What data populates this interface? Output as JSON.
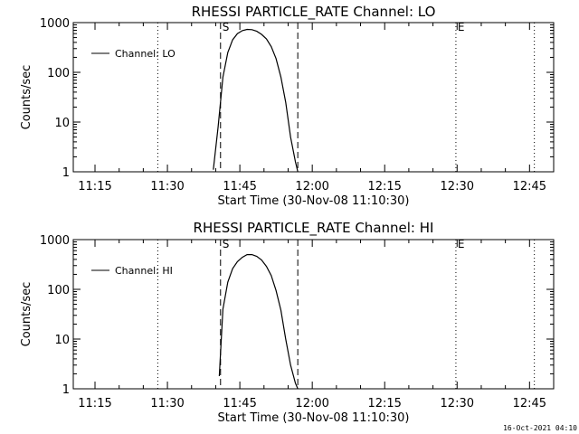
{
  "chart_data": [
    {
      "type": "line",
      "title": "RHESSI PARTICLE_RATE Channel: LO",
      "xlabel": "Start Time (30-Nov-08 11:10:30)",
      "ylabel": "Counts/sec",
      "y_scale": "log",
      "ylim": [
        1,
        1000
      ],
      "xlim": [
        "11:10:30",
        "12:50:00"
      ],
      "x_ticks": [
        "11:15",
        "11:30",
        "11:45",
        "12:00",
        "12:15",
        "12:30",
        "12:45"
      ],
      "y_ticks": [
        "1",
        "10",
        "100",
        "1000"
      ],
      "legend": "top-left",
      "markers": [
        {
          "label": "S",
          "time": "11:41:00",
          "style": "dashed"
        },
        {
          "label": "",
          "time": "11:57:00",
          "style": "dashed"
        },
        {
          "label": "",
          "time": "11:28:00",
          "style": "dotted"
        },
        {
          "label": "E",
          "time": "12:29:45",
          "style": "dotted"
        },
        {
          "label": "",
          "time": "12:46:00",
          "style": "dotted"
        }
      ],
      "series": [
        {
          "name": "Channel: LO",
          "x": [
            "11:39:30",
            "11:40:30",
            "11:41:30",
            "11:42:30",
            "11:43:30",
            "11:44:30",
            "11:45:30",
            "11:46:30",
            "11:47:30",
            "11:48:30",
            "11:49:30",
            "11:50:30",
            "11:51:30",
            "11:52:30",
            "11:53:30",
            "11:54:30",
            "11:55:30",
            "11:56:30",
            "11:57:00"
          ],
          "y": [
            1.1,
            8,
            80,
            250,
            450,
            600,
            690,
            730,
            720,
            670,
            580,
            470,
            330,
            190,
            80,
            25,
            5,
            1.6,
            1
          ]
        }
      ]
    },
    {
      "type": "line",
      "title": "RHESSI PARTICLE_RATE Channel: HI",
      "xlabel": "Start Time (30-Nov-08 11:10:30)",
      "ylabel": "Counts/sec",
      "y_scale": "log",
      "ylim": [
        1,
        1000
      ],
      "xlim": [
        "11:10:30",
        "12:50:00"
      ],
      "x_ticks": [
        "11:15",
        "11:30",
        "11:45",
        "12:00",
        "12:15",
        "12:30",
        "12:45"
      ],
      "y_ticks": [
        "1",
        "10",
        "100",
        "1000"
      ],
      "legend": "top-left",
      "markers": [
        {
          "label": "S",
          "time": "11:41:00",
          "style": "dashed"
        },
        {
          "label": "",
          "time": "11:57:00",
          "style": "dashed"
        },
        {
          "label": "",
          "time": "11:28:00",
          "style": "dotted"
        },
        {
          "label": "E",
          "time": "12:29:45",
          "style": "dotted"
        },
        {
          "label": "",
          "time": "12:46:00",
          "style": "dotted"
        }
      ],
      "series": [
        {
          "name": "Channel: HI",
          "x": [
            "11:40:45",
            "11:41:30",
            "11:42:30",
            "11:43:30",
            "11:44:30",
            "11:45:30",
            "11:46:30",
            "11:47:30",
            "11:48:30",
            "11:49:30",
            "11:50:30",
            "11:51:30",
            "11:52:30",
            "11:53:30",
            "11:54:30",
            "11:55:30",
            "11:56:30",
            "11:57:00"
          ],
          "y": [
            1.8,
            40,
            140,
            260,
            360,
            440,
            500,
            500,
            460,
            390,
            290,
            190,
            95,
            38,
            10,
            3,
            1.3,
            1
          ]
        }
      ]
    }
  ],
  "footer": {
    "timestamp": "16-Oct-2021 04:10"
  }
}
